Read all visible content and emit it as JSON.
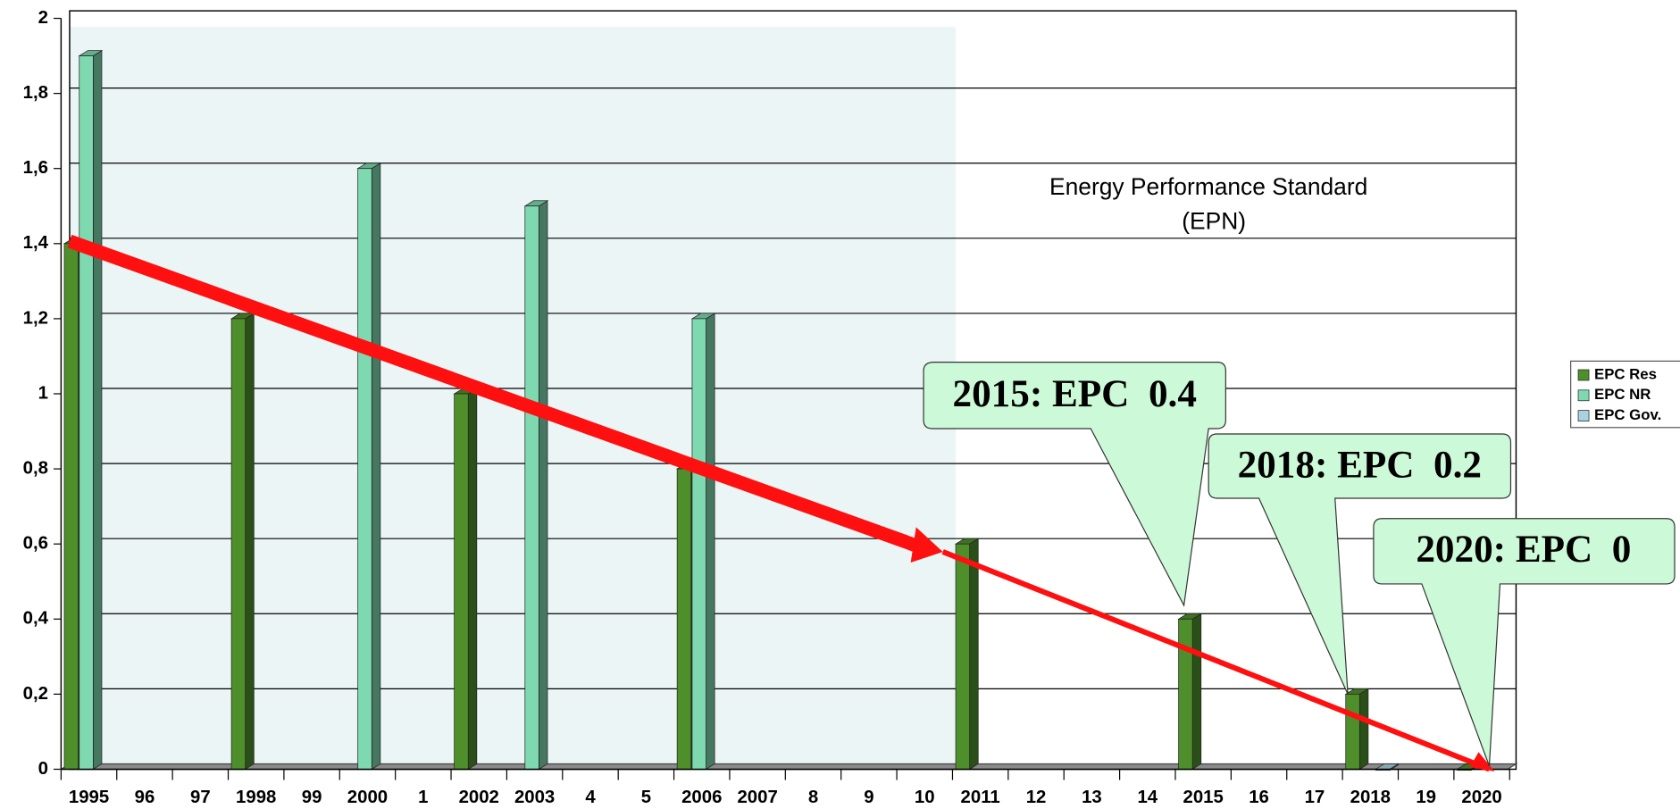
{
  "chart_data": {
    "type": "bar",
    "categories": [
      "1995",
      "96",
      "97",
      "1998",
      "99",
      "2000",
      "1",
      "2002",
      "2003",
      "4",
      "5",
      "2006",
      "2007",
      "8",
      "9",
      "10",
      "2011",
      "12",
      "13",
      "14",
      "2015",
      "16",
      "17",
      "2018",
      "19",
      "2020"
    ],
    "series": [
      {
        "name": "EPC Res",
        "color": "#4e8f2c",
        "values": [
          1.4,
          null,
          null,
          1.2,
          null,
          null,
          null,
          1.0,
          null,
          null,
          null,
          0.8,
          null,
          null,
          null,
          null,
          0.6,
          null,
          null,
          null,
          0.4,
          null,
          null,
          0.2,
          null,
          0
        ]
      },
      {
        "name": "EPC NR",
        "color": "#7ed9b0",
        "values": [
          1.9,
          null,
          null,
          null,
          null,
          1.6,
          null,
          null,
          1.5,
          null,
          null,
          1.2,
          null,
          null,
          null,
          null,
          null,
          null,
          null,
          null,
          null,
          null,
          null,
          null,
          null,
          null
        ]
      },
      {
        "name": "EPC Gov.",
        "color": "#a9d2dd",
        "values": [
          null,
          null,
          null,
          null,
          null,
          null,
          null,
          null,
          null,
          null,
          null,
          null,
          null,
          null,
          null,
          null,
          null,
          null,
          null,
          null,
          null,
          null,
          null,
          0,
          null,
          null
        ]
      }
    ],
    "ylim": [
      0,
      2
    ],
    "yticks": [
      0,
      {
        "value": 0.2,
        "label": "0,2"
      },
      {
        "value": 0.4,
        "label": "0,4"
      },
      {
        "value": 0.6,
        "label": "0,6"
      },
      {
        "value": 0.8,
        "label": "0,8"
      },
      1,
      {
        "value": 1.2,
        "label": "1,2"
      },
      {
        "value": 1.4,
        "label": "1,4"
      },
      {
        "value": 1.6,
        "label": "1,6"
      },
      {
        "value": 1.8,
        "label": "1,8"
      },
      2
    ],
    "grid": true,
    "legend": "right",
    "annotations": [
      "Energy Performance Standard",
      "(EPN)",
      "2015: EPC  0.4",
      "2018: EPC  0.2",
      "2020: EPC  0"
    ]
  }
}
